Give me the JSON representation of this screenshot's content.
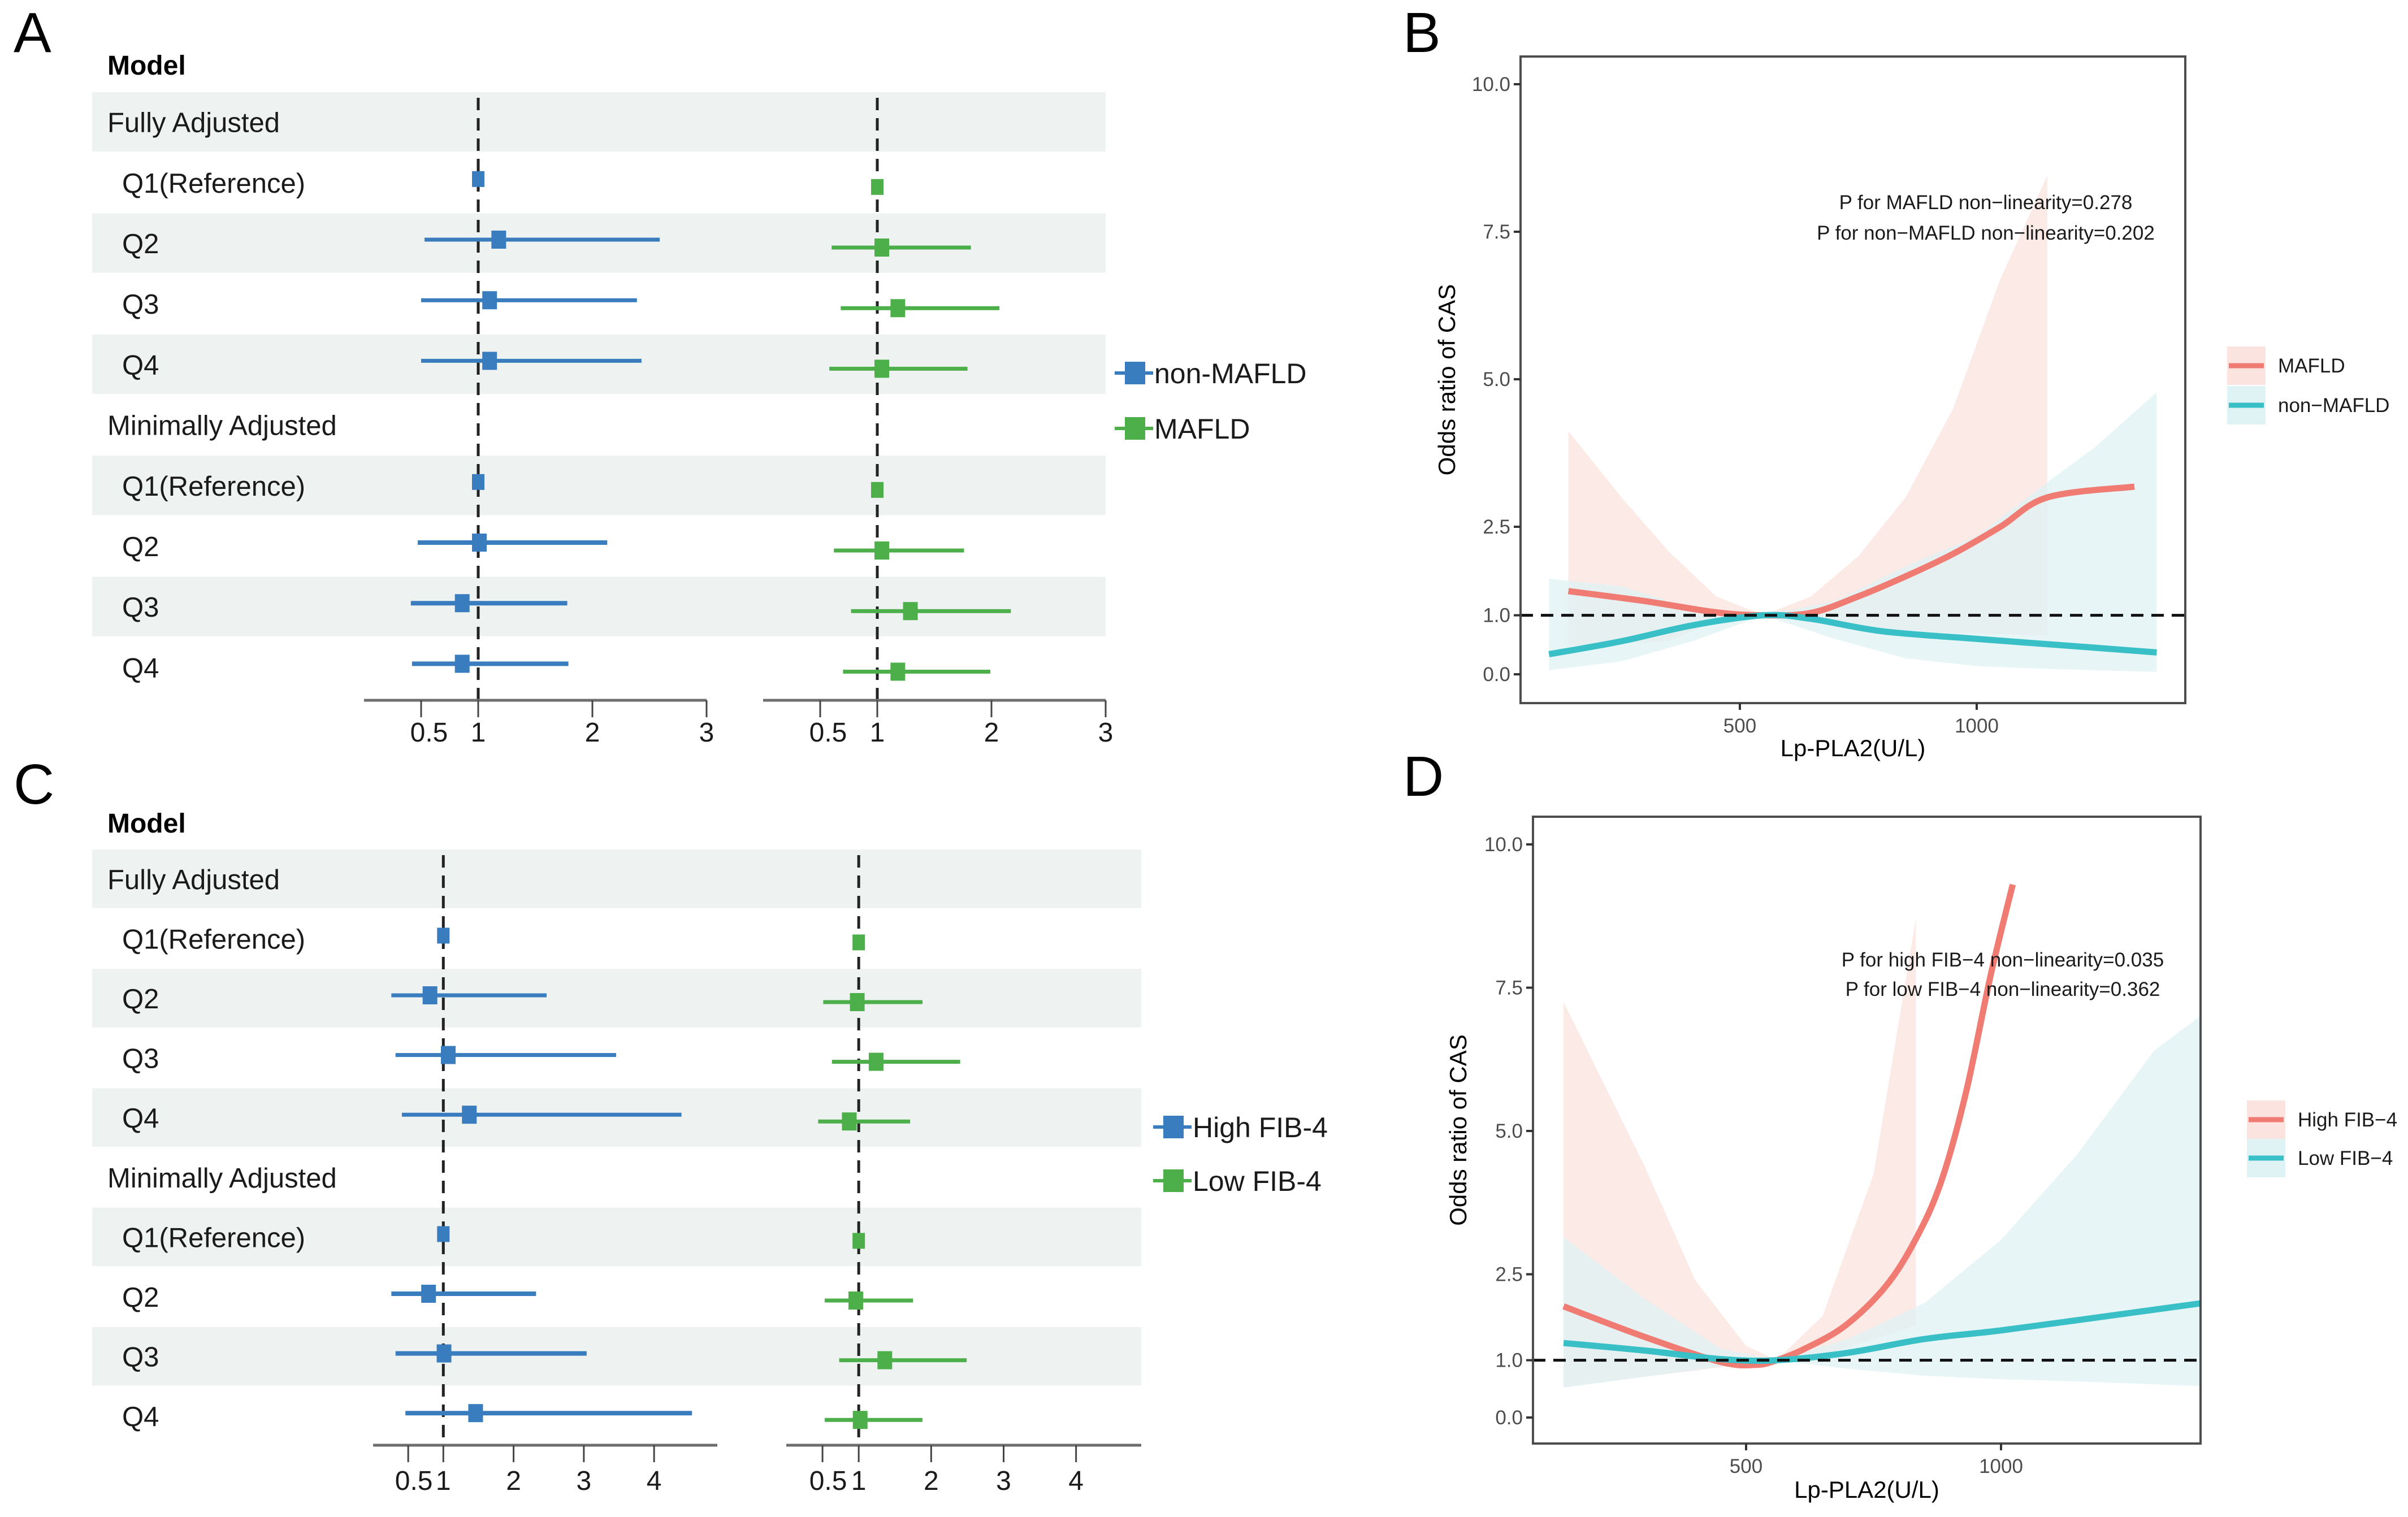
{
  "figure": {
    "panel_letters": [
      "A",
      "B",
      "C",
      "D"
    ]
  },
  "chart_data": [
    {
      "id": "A",
      "type": "forest",
      "header": "Model",
      "rows": [
        {
          "label": "Fully Adjusted",
          "kind": "group"
        },
        {
          "label": "Q1(Reference)",
          "kind": "item"
        },
        {
          "label": "Q2",
          "kind": "item"
        },
        {
          "label": "Q3",
          "kind": "item"
        },
        {
          "label": "Q4",
          "kind": "item"
        },
        {
          "label": "Minimally Adjusted",
          "kind": "group"
        },
        {
          "label": "Q1(Reference)",
          "kind": "item"
        },
        {
          "label": "Q2",
          "kind": "item"
        },
        {
          "label": "Q3",
          "kind": "item"
        },
        {
          "label": "Q4",
          "kind": "item"
        }
      ],
      "xlim": [
        0,
        3
      ],
      "xticks": [
        0.5,
        1,
        2,
        3
      ],
      "xtick_labels": [
        "0.5",
        "1",
        "2",
        "3"
      ],
      "reference_line": 1,
      "series": [
        {
          "name": "non-MAFLD",
          "color": "#3a7dbf",
          "subplot": 0,
          "values": [
            null,
            {
              "or": 1.0,
              "lo": 1.0,
              "hi": 1.0
            },
            {
              "or": 1.18,
              "lo": 0.53,
              "hi": 2.59
            },
            {
              "or": 1.1,
              "lo": 0.5,
              "hi": 2.39
            },
            {
              "or": 1.1,
              "lo": 0.5,
              "hi": 2.43
            },
            null,
            {
              "or": 1.0,
              "lo": 1.0,
              "hi": 1.0
            },
            {
              "or": 1.01,
              "lo": 0.47,
              "hi": 2.13
            },
            {
              "or": 0.86,
              "lo": 0.41,
              "hi": 1.78
            },
            {
              "or": 0.86,
              "lo": 0.42,
              "hi": 1.79
            }
          ]
        },
        {
          "name": "MAFLD",
          "color": "#4daf4a",
          "subplot": 1,
          "values": [
            null,
            {
              "or": 1.0,
              "lo": 1.0,
              "hi": 1.0
            },
            {
              "or": 1.04,
              "lo": 0.6,
              "hi": 1.82
            },
            {
              "or": 1.18,
              "lo": 0.68,
              "hi": 2.07
            },
            {
              "or": 1.04,
              "lo": 0.58,
              "hi": 1.79
            },
            null,
            {
              "or": 1.0,
              "lo": 1.0,
              "hi": 1.0
            },
            {
              "or": 1.04,
              "lo": 0.62,
              "hi": 1.76
            },
            {
              "or": 1.29,
              "lo": 0.77,
              "hi": 2.17
            },
            {
              "or": 1.18,
              "lo": 0.7,
              "hi": 1.99
            }
          ]
        }
      ],
      "legend": [
        "non-MAFLD",
        "MAFLD"
      ],
      "legend_position": "right"
    },
    {
      "id": "C",
      "type": "forest",
      "header": "Model",
      "rows": [
        {
          "label": "Fully Adjusted",
          "kind": "group"
        },
        {
          "label": "Q1(Reference)",
          "kind": "item"
        },
        {
          "label": "Q2",
          "kind": "item"
        },
        {
          "label": "Q3",
          "kind": "item"
        },
        {
          "label": "Q4",
          "kind": "item"
        },
        {
          "label": "Minimally Adjusted",
          "kind": "group"
        },
        {
          "label": "Q1(Reference)",
          "kind": "item"
        },
        {
          "label": "Q2",
          "kind": "item"
        },
        {
          "label": "Q3",
          "kind": "item"
        },
        {
          "label": "Q4",
          "kind": "item"
        }
      ],
      "xlim": [
        0,
        4.9
      ],
      "xticks": [
        0.5,
        1,
        2,
        3,
        4
      ],
      "xtick_labels": [
        "0.5",
        "1",
        "2",
        "3",
        "4"
      ],
      "reference_line": 1,
      "series": [
        {
          "name": "High FIB-4",
          "color": "#3a7dbf",
          "subplot": 0,
          "values": [
            null,
            {
              "or": 1.0,
              "lo": 1.0,
              "hi": 1.0
            },
            {
              "or": 0.81,
              "lo": 0.26,
              "hi": 2.47
            },
            {
              "or": 1.07,
              "lo": 0.32,
              "hi": 3.46
            },
            {
              "or": 1.37,
              "lo": 0.41,
              "hi": 4.39
            },
            null,
            {
              "or": 1.0,
              "lo": 1.0,
              "hi": 1.0
            },
            {
              "or": 0.79,
              "lo": 0.26,
              "hi": 2.32
            },
            {
              "or": 1.01,
              "lo": 0.32,
              "hi": 3.04
            },
            {
              "or": 1.46,
              "lo": 0.46,
              "hi": 4.54
            }
          ]
        },
        {
          "name": "Low FIB-4",
          "color": "#4daf4a",
          "subplot": 1,
          "values": [
            null,
            {
              "or": 1.0,
              "lo": 1.0,
              "hi": 1.0
            },
            {
              "or": 0.98,
              "lo": 0.51,
              "hi": 1.88
            },
            {
              "or": 1.24,
              "lo": 0.63,
              "hi": 2.4
            },
            {
              "or": 0.87,
              "lo": 0.44,
              "hi": 1.71
            },
            null,
            {
              "or": 1.0,
              "lo": 1.0,
              "hi": 1.0
            },
            {
              "or": 0.96,
              "lo": 0.53,
              "hi": 1.75
            },
            {
              "or": 1.36,
              "lo": 0.73,
              "hi": 2.49
            },
            {
              "or": 1.02,
              "lo": 0.53,
              "hi": 1.88
            }
          ]
        }
      ],
      "legend": [
        "High FIB-4",
        "Low FIB-4"
      ],
      "legend_position": "right"
    },
    {
      "id": "B",
      "type": "line",
      "title": "",
      "xlabel": "Lp-PLA2(U/L)",
      "ylabel": "Odds ratio of CAS",
      "xlim": [
        36,
        1440
      ],
      "ylim": [
        -0.5,
        10.9
      ],
      "xticks": [
        500,
        1000
      ],
      "xtick_labels": [
        "500",
        "1000"
      ],
      "yticks": [
        0,
        1,
        2.5,
        5,
        7.5,
        10
      ],
      "ytick_labels": [
        "0.0",
        "1.0",
        "2.5",
        "5.0",
        "7.5",
        "10.0"
      ],
      "reference_line": 1,
      "grid": false,
      "annotations": [
        "P for MAFLD non−linearity=0.278",
        "P for non−MAFLD non−linearity=0.202"
      ],
      "legend": [
        "MAFLD",
        "non−MAFLD"
      ],
      "legend_position": "right",
      "series": [
        {
          "name": "MAFLD",
          "color": "#f07b72",
          "band_color": "#fbe3df",
          "x": [
            138,
            300,
            450,
            550,
            650,
            750,
            850,
            950,
            1050,
            1150,
            1333
          ],
          "y": [
            1.41,
            1.24,
            1.05,
            1.0,
            1.04,
            1.32,
            1.66,
            2.04,
            2.5,
            3.0,
            3.18
          ],
          "band_x": [
            138,
            250,
            350,
            450,
            550,
            650,
            750,
            850,
            950,
            1050,
            1149
          ],
          "band_upper": [
            4.12,
            3.0,
            2.08,
            1.32,
            1.0,
            1.32,
            2.0,
            3.0,
            4.5,
            6.7,
            8.45
          ],
          "band_lower": [
            0.48,
            0.52,
            0.56,
            0.9,
            1.0,
            0.9,
            0.82,
            0.75,
            0.7,
            0.68,
            0.66
          ]
        },
        {
          "name": "non−MAFLD",
          "color": "#39bfc6",
          "band_color": "#dff2f4",
          "x": [
            97,
            250,
            400,
            550,
            650,
            800,
            1000,
            1200,
            1380
          ],
          "y": [
            0.34,
            0.56,
            0.83,
            1.0,
            0.94,
            0.73,
            0.6,
            0.48,
            0.37
          ],
          "band_x": [
            97,
            250,
            400,
            550,
            700,
            850,
            1000,
            1150,
            1250,
            1380
          ],
          "band_upper": [
            1.62,
            1.49,
            1.11,
            1.0,
            1.24,
            1.83,
            2.34,
            3.26,
            3.85,
            4.78
          ],
          "band_lower": [
            0.07,
            0.22,
            0.56,
            1.0,
            0.6,
            0.27,
            0.14,
            0.09,
            0.07,
            0.04
          ]
        }
      ]
    },
    {
      "id": "D",
      "type": "line",
      "title": "",
      "xlabel": "Lp-PLA2(U/L)",
      "ylabel": "Odds ratio of CAS",
      "xlim": [
        81,
        1390
      ],
      "ylim": [
        -0.6,
        10.6
      ],
      "xticks": [
        500,
        1000
      ],
      "xtick_labels": [
        "500",
        "1000"
      ],
      "yticks": [
        0,
        1,
        2.5,
        5,
        7.5,
        10
      ],
      "ytick_labels": [
        "0.0",
        "1.0",
        "2.5",
        "5.0",
        "7.5",
        "10.0"
      ],
      "reference_line": 1,
      "grid": false,
      "annotations": [
        "P for high FIB−4 non−linearity=0.035",
        "P for low FIB−4 non−linearity=0.362"
      ],
      "legend": [
        "High FIB−4",
        "Low FIB−4"
      ],
      "legend_position": "right",
      "series": [
        {
          "name": "High FIB−4",
          "color": "#f07b72",
          "band_color": "#fbe3df",
          "x": [
            142,
            300,
            450,
            520,
            560,
            615,
            694,
            773,
            832,
            882,
            931,
            980,
            1023
          ],
          "y": [
            1.94,
            1.41,
            0.97,
            0.92,
            1.0,
            1.2,
            1.6,
            2.28,
            3.1,
            4.1,
            5.66,
            7.73,
            9.3
          ],
          "band_x": [
            142,
            300,
            400,
            500,
            560,
            650,
            750,
            833
          ],
          "band_upper": [
            7.25,
            4.4,
            2.4,
            1.25,
            1.0,
            1.77,
            4.25,
            8.7
          ],
          "band_lower": [
            0.53,
            0.71,
            0.82,
            0.93,
            1.0,
            1.09,
            1.37,
            1.6
          ]
        },
        {
          "name": "Low FIB−4",
          "color": "#39bfc6",
          "band_color": "#dff2f4",
          "x": [
            142,
            300,
            450,
            560,
            700,
            850,
            1000,
            1200,
            1390
          ],
          "y": [
            1.3,
            1.17,
            1.02,
            1.0,
            1.13,
            1.37,
            1.52,
            1.76,
            1.99
          ],
          "band_x": [
            142,
            300,
            450,
            560,
            700,
            850,
            1000,
            1150,
            1300,
            1390
          ],
          "band_upper": [
            3.15,
            2.08,
            1.2,
            1.0,
            1.37,
            2.0,
            3.1,
            4.6,
            6.4,
            7.0
          ],
          "band_lower": [
            0.52,
            0.71,
            0.89,
            1.0,
            0.85,
            0.73,
            0.67,
            0.63,
            0.58,
            0.55
          ]
        }
      ]
    }
  ]
}
